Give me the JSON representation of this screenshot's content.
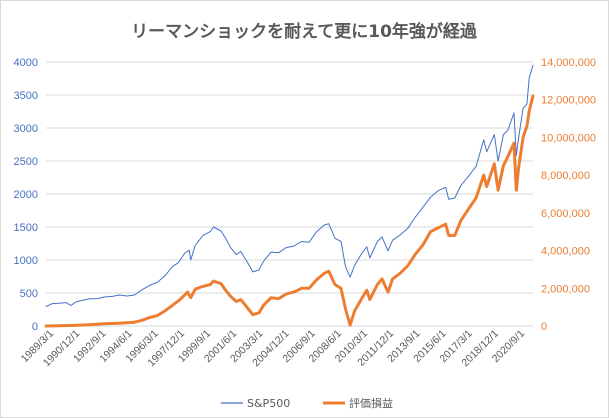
{
  "chart_data": {
    "type": "line",
    "title": "リーマンショックを耐えて更に10年強が経過",
    "xlabel": "",
    "ylabel_left": "",
    "ylabel_right": "",
    "x_tick_labels": [
      "1989/3/1",
      "1990/12/1",
      "1992/9/1",
      "1994/6/1",
      "1996/3/1",
      "1997/12/1",
      "1999/9/1",
      "2001/6/1",
      "2003/3/1",
      "2004/12/1",
      "2006/9/1",
      "2008/6/1",
      "2010/3/1",
      "2011/12/1",
      "2013/9/1",
      "2015/6/1",
      "2017/3/1",
      "2018/12/1",
      "2020/9/1"
    ],
    "x_range": [
      1989.17,
      2021.25
    ],
    "ylim_left": [
      0,
      4000
    ],
    "ylim_right": [
      0,
      14000000
    ],
    "y_ticks_left": [
      "0",
      "500",
      "1000",
      "1500",
      "2000",
      "2500",
      "3000",
      "3500",
      "4000"
    ],
    "y_ticks_right": [
      "0",
      "2,000,000",
      "4,000,000",
      "6,000,000",
      "8,000,000",
      "10,000,000",
      "12,000,000",
      "14,000,000"
    ],
    "grid": true,
    "legend_position": "bottom",
    "series": [
      {
        "name": "S&P500",
        "axis": "left",
        "color": "#4472c4",
        "points": [
          [
            1989.17,
            295
          ],
          [
            1989.6,
            340
          ],
          [
            1990.0,
            345
          ],
          [
            1990.5,
            355
          ],
          [
            1990.8,
            310
          ],
          [
            1991.2,
            370
          ],
          [
            1991.6,
            390
          ],
          [
            1992.0,
            410
          ],
          [
            1992.6,
            415
          ],
          [
            1993.0,
            440
          ],
          [
            1993.6,
            450
          ],
          [
            1994.0,
            470
          ],
          [
            1994.5,
            455
          ],
          [
            1995.0,
            470
          ],
          [
            1995.5,
            550
          ],
          [
            1996.0,
            615
          ],
          [
            1996.5,
            660
          ],
          [
            1997.0,
            760
          ],
          [
            1997.5,
            900
          ],
          [
            1997.9,
            960
          ],
          [
            1998.3,
            1100
          ],
          [
            1998.6,
            1150
          ],
          [
            1998.7,
            1000
          ],
          [
            1999.0,
            1220
          ],
          [
            1999.5,
            1370
          ],
          [
            2000.0,
            1430
          ],
          [
            2000.2,
            1500
          ],
          [
            2000.7,
            1440
          ],
          [
            2001.0,
            1330
          ],
          [
            2001.3,
            1200
          ],
          [
            2001.7,
            1080
          ],
          [
            2002.0,
            1130
          ],
          [
            2002.5,
            940
          ],
          [
            2002.8,
            820
          ],
          [
            2003.2,
            850
          ],
          [
            2003.5,
            980
          ],
          [
            2004.0,
            1120
          ],
          [
            2004.5,
            1110
          ],
          [
            2005.0,
            1190
          ],
          [
            2005.5,
            1210
          ],
          [
            2006.0,
            1280
          ],
          [
            2006.5,
            1270
          ],
          [
            2007.0,
            1430
          ],
          [
            2007.5,
            1530
          ],
          [
            2007.8,
            1550
          ],
          [
            2008.2,
            1330
          ],
          [
            2008.6,
            1280
          ],
          [
            2008.9,
            900
          ],
          [
            2009.2,
            740
          ],
          [
            2009.5,
            920
          ],
          [
            2010.0,
            1110
          ],
          [
            2010.3,
            1200
          ],
          [
            2010.5,
            1030
          ],
          [
            2011.0,
            1280
          ],
          [
            2011.3,
            1350
          ],
          [
            2011.7,
            1140
          ],
          [
            2012.0,
            1300
          ],
          [
            2012.5,
            1380
          ],
          [
            2013.0,
            1480
          ],
          [
            2013.5,
            1650
          ],
          [
            2014.0,
            1800
          ],
          [
            2014.5,
            1950
          ],
          [
            2015.0,
            2050
          ],
          [
            2015.5,
            2100
          ],
          [
            2015.7,
            1920
          ],
          [
            2016.1,
            1940
          ],
          [
            2016.5,
            2130
          ],
          [
            2017.0,
            2270
          ],
          [
            2017.5,
            2420
          ],
          [
            2018.0,
            2820
          ],
          [
            2018.2,
            2640
          ],
          [
            2018.7,
            2900
          ],
          [
            2018.95,
            2500
          ],
          [
            2019.3,
            2900
          ],
          [
            2019.6,
            2970
          ],
          [
            2020.0,
            3230
          ],
          [
            2020.15,
            2580
          ],
          [
            2020.3,
            2850
          ],
          [
            2020.6,
            3300
          ],
          [
            2020.85,
            3360
          ],
          [
            2021.0,
            3760
          ],
          [
            2021.25,
            3950
          ]
        ]
      },
      {
        "name": "評価損益",
        "axis": "right",
        "color": "#ed7d31",
        "points": [
          [
            1989.17,
            0
          ],
          [
            1990.0,
            10000
          ],
          [
            1991.0,
            30000
          ],
          [
            1992.0,
            70000
          ],
          [
            1993.0,
            120000
          ],
          [
            1994.0,
            150000
          ],
          [
            1995.0,
            200000
          ],
          [
            1995.5,
            300000
          ],
          [
            1996.0,
            450000
          ],
          [
            1996.5,
            550000
          ],
          [
            1997.0,
            800000
          ],
          [
            1997.5,
            1100000
          ],
          [
            1998.0,
            1400000
          ],
          [
            1998.5,
            1800000
          ],
          [
            1998.7,
            1500000
          ],
          [
            1999.0,
            1950000
          ],
          [
            1999.5,
            2100000
          ],
          [
            2000.0,
            2200000
          ],
          [
            2000.2,
            2380000
          ],
          [
            2000.7,
            2250000
          ],
          [
            2001.0,
            1900000
          ],
          [
            2001.3,
            1600000
          ],
          [
            2001.7,
            1300000
          ],
          [
            2002.0,
            1400000
          ],
          [
            2002.5,
            900000
          ],
          [
            2002.8,
            600000
          ],
          [
            2003.2,
            700000
          ],
          [
            2003.5,
            1100000
          ],
          [
            2004.0,
            1500000
          ],
          [
            2004.5,
            1450000
          ],
          [
            2005.0,
            1700000
          ],
          [
            2005.5,
            1800000
          ],
          [
            2006.0,
            2000000
          ],
          [
            2006.5,
            2000000
          ],
          [
            2007.0,
            2450000
          ],
          [
            2007.5,
            2800000
          ],
          [
            2007.8,
            2900000
          ],
          [
            2008.2,
            2200000
          ],
          [
            2008.6,
            2000000
          ],
          [
            2008.9,
            900000
          ],
          [
            2009.2,
            50000
          ],
          [
            2009.5,
            800000
          ],
          [
            2010.0,
            1500000
          ],
          [
            2010.3,
            1900000
          ],
          [
            2010.5,
            1400000
          ],
          [
            2011.0,
            2200000
          ],
          [
            2011.3,
            2500000
          ],
          [
            2011.7,
            1800000
          ],
          [
            2012.0,
            2500000
          ],
          [
            2012.5,
            2800000
          ],
          [
            2013.0,
            3200000
          ],
          [
            2013.5,
            3800000
          ],
          [
            2014.0,
            4300000
          ],
          [
            2014.5,
            5000000
          ],
          [
            2015.0,
            5200000
          ],
          [
            2015.5,
            5400000
          ],
          [
            2015.7,
            4800000
          ],
          [
            2016.1,
            4800000
          ],
          [
            2016.5,
            5600000
          ],
          [
            2017.0,
            6200000
          ],
          [
            2017.5,
            6800000
          ],
          [
            2018.0,
            8000000
          ],
          [
            2018.2,
            7400000
          ],
          [
            2018.7,
            8600000
          ],
          [
            2018.95,
            7200000
          ],
          [
            2019.3,
            8500000
          ],
          [
            2019.6,
            9000000
          ],
          [
            2020.0,
            9700000
          ],
          [
            2020.15,
            7200000
          ],
          [
            2020.3,
            8400000
          ],
          [
            2020.6,
            10000000
          ],
          [
            2020.85,
            10600000
          ],
          [
            2021.0,
            11400000
          ],
          [
            2021.25,
            12200000
          ]
        ]
      }
    ]
  }
}
